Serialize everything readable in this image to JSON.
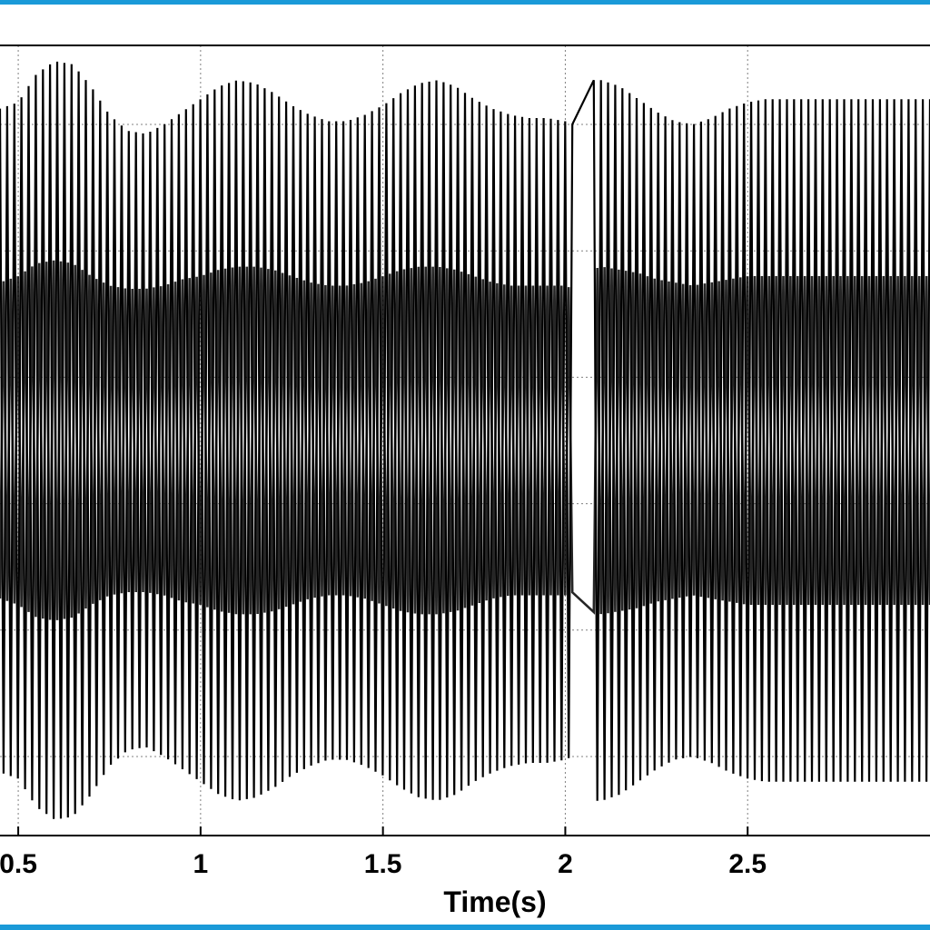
{
  "colors": {
    "frame": "#1a9ad8",
    "trace": "#000000",
    "grid": "#808080",
    "background": "#ffffff"
  },
  "chart_data": {
    "type": "line",
    "xlabel": "Time(s)",
    "ylabel": "",
    "title": "",
    "xlim": [
      0.45,
      3.0
    ],
    "ylim": [
      -1.25,
      1.25
    ],
    "xticks": [
      0.5,
      1,
      1.5,
      2,
      2.5
    ],
    "xtick_labels": [
      "0.5",
      "1",
      "1.5",
      "2",
      "2.5"
    ],
    "yticks": [
      -1,
      -0.6,
      -0.2,
      0.2,
      0.6,
      1
    ],
    "grid": true,
    "series": [
      {
        "description": "outer oscillation envelope (peak magnitude vs time)",
        "x": [
          0.45,
          0.5,
          0.55,
          0.6,
          0.65,
          0.7,
          0.75,
          0.8,
          0.85,
          0.9,
          0.95,
          1.0,
          1.05,
          1.1,
          1.15,
          1.2,
          1.25,
          1.3,
          1.35,
          1.4,
          1.45,
          1.5,
          1.55,
          1.6,
          1.65,
          1.7,
          1.75,
          1.8,
          1.85,
          1.9,
          1.95,
          2.0,
          2.02,
          2.07,
          2.1,
          2.15,
          2.2,
          2.25,
          2.3,
          2.35,
          2.4,
          2.45,
          2.5,
          2.55,
          2.6,
          2.65,
          2.7,
          2.75,
          2.8,
          2.85,
          2.9,
          2.95,
          3.0
        ],
        "amplitude": [
          1.05,
          1.07,
          1.16,
          1.2,
          1.19,
          1.12,
          1.03,
          0.98,
          0.97,
          1.0,
          1.04,
          1.08,
          1.12,
          1.14,
          1.13,
          1.1,
          1.06,
          1.03,
          1.01,
          1.01,
          1.03,
          1.06,
          1.1,
          1.13,
          1.14,
          1.12,
          1.08,
          1.05,
          1.03,
          1.02,
          1.02,
          1.01,
          1.0,
          1.14,
          1.14,
          1.12,
          1.08,
          1.04,
          1.01,
          1.0,
          1.02,
          1.05,
          1.07,
          1.08,
          1.08,
          1.08,
          1.08,
          1.08,
          1.08,
          1.08,
          1.08,
          1.08,
          1.08
        ]
      },
      {
        "description": "inner oscillation envelope (peak magnitude vs time)",
        "x": [
          0.45,
          0.5,
          0.55,
          0.6,
          0.65,
          0.7,
          0.75,
          0.8,
          0.85,
          0.9,
          0.95,
          1.0,
          1.05,
          1.1,
          1.15,
          1.2,
          1.25,
          1.3,
          1.35,
          1.4,
          1.45,
          1.5,
          1.55,
          1.6,
          1.65,
          1.7,
          1.75,
          1.8,
          1.85,
          1.9,
          1.95,
          2.0,
          2.02,
          2.07,
          2.1,
          2.15,
          2.2,
          2.25,
          2.3,
          2.35,
          2.4,
          2.45,
          2.5,
          2.55,
          2.6,
          2.65,
          2.7,
          2.75,
          2.8,
          2.85,
          2.9,
          2.95,
          3.0
        ],
        "amplitude": [
          0.5,
          0.52,
          0.56,
          0.57,
          0.56,
          0.52,
          0.49,
          0.48,
          0.48,
          0.49,
          0.51,
          0.52,
          0.54,
          0.55,
          0.55,
          0.54,
          0.52,
          0.5,
          0.49,
          0.49,
          0.5,
          0.52,
          0.54,
          0.55,
          0.55,
          0.54,
          0.52,
          0.5,
          0.49,
          0.49,
          0.49,
          0.49,
          0.48,
          0.54,
          0.55,
          0.54,
          0.53,
          0.51,
          0.5,
          0.49,
          0.5,
          0.51,
          0.52,
          0.52,
          0.52,
          0.52,
          0.52,
          0.52,
          0.52,
          0.52,
          0.52,
          0.52,
          0.52
        ]
      }
    ]
  }
}
